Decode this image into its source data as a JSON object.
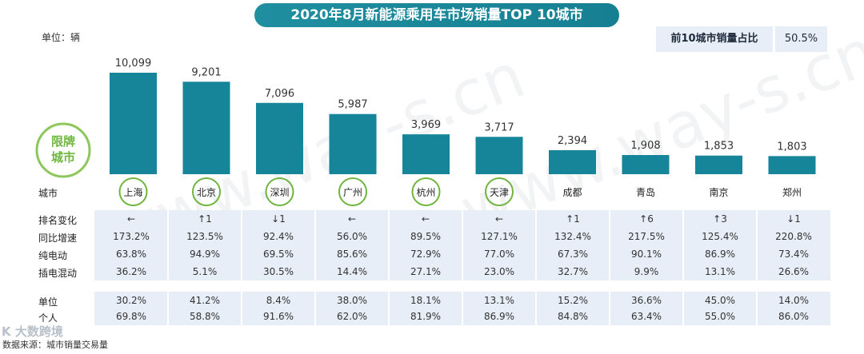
{
  "title": "2020年8月新能源乘用车市场销量TOP 10城市",
  "unit_label": "单位：辆",
  "share": {
    "label": "前10城市销量占比",
    "value": "50.5%"
  },
  "license_plate_label": [
    "限牌",
    "城市"
  ],
  "row_labels": {
    "city": "城市",
    "rank_change": "排名变化",
    "yoy": "同比增速",
    "bev": "纯电动",
    "phev": "插电混动",
    "org": "单位",
    "personal": "个人"
  },
  "watermark": "www.way-s.cn",
  "logo_text": "K 大数跨境",
  "source": "数据来源：城市销量交易量",
  "colors": {
    "bar": "#16859a",
    "accent_green": "#6fb63f",
    "band": "#e7eef7",
    "title_bg": "#1f8fa0"
  },
  "chart_data": {
    "type": "bar",
    "categories": [
      "上海",
      "北京",
      "深圳",
      "广州",
      "杭州",
      "天津",
      "成都",
      "青岛",
      "南京",
      "郑州"
    ],
    "values": [
      10099,
      9201,
      7096,
      5987,
      3969,
      3717,
      2394,
      1908,
      1853,
      1803
    ],
    "value_labels": [
      "10,099",
      "9,201",
      "7,096",
      "5,987",
      "3,969",
      "3,717",
      "2,394",
      "1,908",
      "1,853",
      "1,803"
    ],
    "ylabel": "单位：辆",
    "ylim": [
      0,
      10099
    ],
    "license_plate_cities": [
      true,
      true,
      true,
      true,
      true,
      true,
      false,
      false,
      false,
      false
    ],
    "table": {
      "rank_change": [
        "←",
        "↑1",
        "↓1",
        "←",
        "←",
        "←",
        "↑1",
        "↑6",
        "↑3",
        "↓1"
      ],
      "yoy": [
        "173.2%",
        "123.5%",
        "92.4%",
        "56.0%",
        "89.5%",
        "127.1%",
        "132.4%",
        "217.5%",
        "125.4%",
        "220.8%"
      ],
      "bev": [
        "63.8%",
        "94.9%",
        "69.5%",
        "85.6%",
        "72.9%",
        "77.0%",
        "67.3%",
        "90.1%",
        "86.9%",
        "73.4%"
      ],
      "phev": [
        "36.2%",
        "5.1%",
        "30.5%",
        "14.4%",
        "27.1%",
        "23.0%",
        "32.7%",
        "9.9%",
        "13.1%",
        "26.6%"
      ],
      "org": [
        "30.2%",
        "41.2%",
        "8.4%",
        "38.0%",
        "18.1%",
        "13.1%",
        "15.2%",
        "36.6%",
        "45.0%",
        "14.0%"
      ],
      "personal": [
        "69.8%",
        "58.8%",
        "91.6%",
        "62.0%",
        "81.9%",
        "86.9%",
        "84.8%",
        "63.4%",
        "55.0%",
        "86.0%"
      ]
    }
  }
}
